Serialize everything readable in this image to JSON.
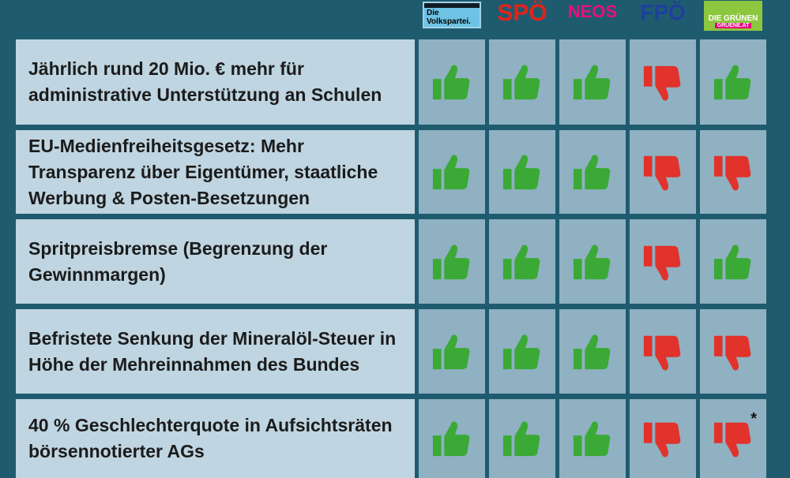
{
  "parties": [
    {
      "label": "Die Volkspartei."
    },
    {
      "label": "SPÖ"
    },
    {
      "label": "NEOS"
    },
    {
      "label": "FPÖ"
    },
    {
      "label": "DIE GRÜNEN",
      "sublabel": "GRUENE.AT"
    }
  ],
  "rows": [
    {
      "text": "Jährlich rund 20 Mio. € mehr für administrative Unterstützung an Schulen",
      "votes": [
        "yes",
        "yes",
        "yes",
        "no",
        "yes"
      ]
    },
    {
      "text": "EU-Medienfreiheitsgesetz: Mehr Transparenz über Eigentümer, staatliche Werbung & Posten-Besetzungen",
      "votes": [
        "yes",
        "yes",
        "yes",
        "no",
        "no"
      ]
    },
    {
      "text": "Spritpreisbremse (Begrenzung der Gewinnmargen)",
      "votes": [
        "yes",
        "yes",
        "yes",
        "no",
        "yes"
      ]
    },
    {
      "text": "Befristete Senkung der Mineralöl-Steuer in Höhe der Mehreinnahmen des Bundes",
      "votes": [
        "yes",
        "yes",
        "yes",
        "no",
        "no"
      ]
    },
    {
      "text": "40 % Geschlechterquote in Aufsichtsräten börsennotierter AGs",
      "votes": [
        "yes",
        "yes",
        "yes",
        "no",
        "no"
      ],
      "note": "*"
    }
  ],
  "colors": {
    "yes": "#3aa935",
    "no": "#e1322b"
  }
}
